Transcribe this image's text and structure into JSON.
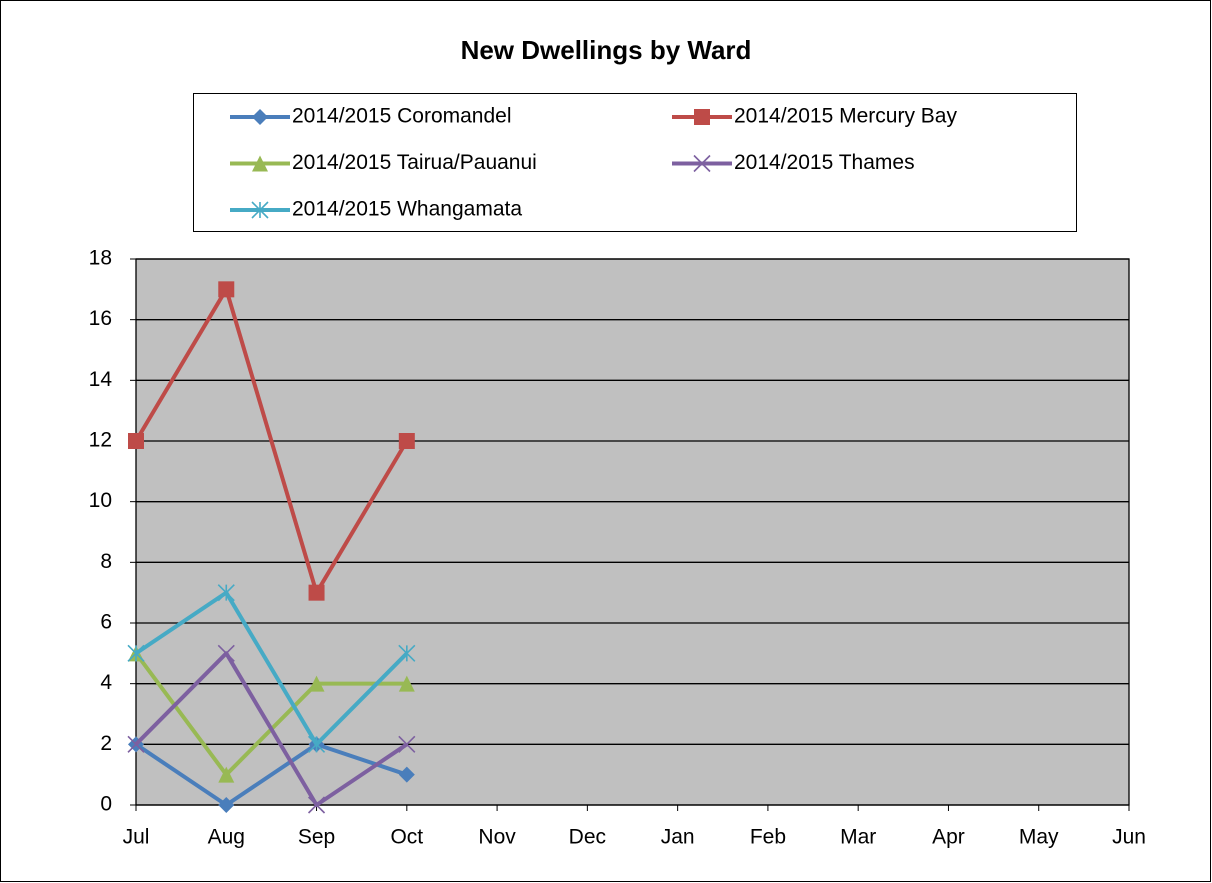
{
  "chart_data": {
    "type": "line",
    "title": "New Dwellings by Ward",
    "categories": [
      "Jul",
      "Aug",
      "Sep",
      "Oct",
      "Nov",
      "Dec",
      "Jan",
      "Feb",
      "Mar",
      "Apr",
      "May",
      "Jun"
    ],
    "series": [
      {
        "name": "2014/2015 Coromandel",
        "color": "#4a7ebb",
        "marker": "diamond",
        "values": [
          2,
          0,
          2,
          1,
          null,
          null,
          null,
          null,
          null,
          null,
          null,
          null
        ]
      },
      {
        "name": "2014/2015 Mercury Bay",
        "color": "#be4b48",
        "marker": "square",
        "values": [
          12,
          17,
          7,
          12,
          null,
          null,
          null,
          null,
          null,
          null,
          null,
          null
        ]
      },
      {
        "name": "2014/2015 Tairua/Pauanui",
        "color": "#98b954",
        "marker": "triangle",
        "values": [
          5,
          1,
          4,
          4,
          null,
          null,
          null,
          null,
          null,
          null,
          null,
          null
        ]
      },
      {
        "name": "2014/2015 Thames",
        "color": "#7d60a0",
        "marker": "x",
        "values": [
          2,
          5,
          0,
          2,
          null,
          null,
          null,
          null,
          null,
          null,
          null,
          null
        ]
      },
      {
        "name": "2014/2015 Whangamata",
        "color": "#46aac5",
        "marker": "star",
        "values": [
          5,
          7,
          2,
          5,
          null,
          null,
          null,
          null,
          null,
          null,
          null,
          null
        ]
      }
    ],
    "ylim": [
      0,
      18
    ],
    "yticks": [
      0,
      2,
      4,
      6,
      8,
      10,
      12,
      14,
      16,
      18
    ],
    "grid": true,
    "legend": "top"
  }
}
